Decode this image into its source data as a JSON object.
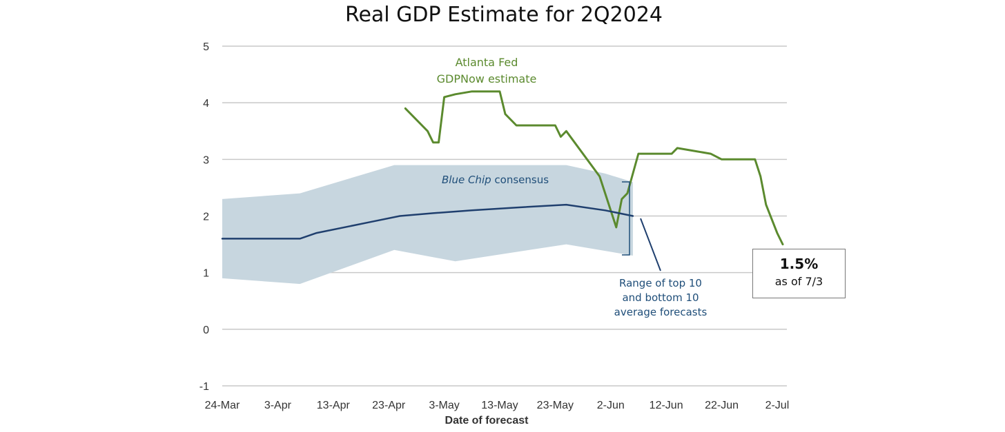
{
  "chart_data": {
    "type": "line",
    "title": "Real GDP Estimate for 2Q2024",
    "xlabel": "Date of forecast",
    "ylabel": "",
    "x_ticks": [
      "24-Mar",
      "3-Apr",
      "13-Apr",
      "23-Apr",
      "3-May",
      "13-May",
      "23-May",
      "2-Jun",
      "12-Jun",
      "22-Jun",
      "2-Jul"
    ],
    "y_ticks": [
      "5",
      "4",
      "3",
      "2",
      "1",
      "0",
      "-1"
    ],
    "ylim": [
      -1,
      5
    ],
    "grid": "horizontal",
    "series": [
      {
        "name": "Atlanta Fed GDPNow estimate",
        "color": "#5b8a2e",
        "points": [
          [
            "2024-04-26",
            3.9
          ],
          [
            "2024-04-30",
            3.5
          ],
          [
            "2024-05-01",
            3.3
          ],
          [
            "2024-05-02",
            3.3
          ],
          [
            "2024-05-03",
            4.1
          ],
          [
            "2024-05-05",
            4.15
          ],
          [
            "2024-05-08",
            4.2
          ],
          [
            "2024-05-13",
            4.2
          ],
          [
            "2024-05-14",
            3.8
          ],
          [
            "2024-05-16",
            3.6
          ],
          [
            "2024-05-23",
            3.6
          ],
          [
            "2024-05-24",
            3.4
          ],
          [
            "2024-05-25",
            3.5
          ],
          [
            "2024-05-31",
            2.7
          ],
          [
            "2024-06-03",
            1.8
          ],
          [
            "2024-06-04",
            2.3
          ],
          [
            "2024-06-05",
            2.4
          ],
          [
            "2024-06-07",
            3.1
          ],
          [
            "2024-06-13",
            3.1
          ],
          [
            "2024-06-14",
            3.2
          ],
          [
            "2024-06-17",
            3.15
          ],
          [
            "2024-06-20",
            3.1
          ],
          [
            "2024-06-22",
            3.0
          ],
          [
            "2024-06-28",
            3.0
          ],
          [
            "2024-06-29",
            2.7
          ],
          [
            "2024-06-30",
            2.2
          ],
          [
            "2024-07-02",
            1.7
          ],
          [
            "2024-07-03",
            1.5
          ]
        ]
      },
      {
        "name": "Blue Chip consensus",
        "color": "#1f3f6e",
        "points": [
          [
            "2024-03-24",
            1.6
          ],
          [
            "2024-04-07",
            1.6
          ],
          [
            "2024-04-10",
            1.7
          ],
          [
            "2024-04-20",
            1.9
          ],
          [
            "2024-04-25",
            2.0
          ],
          [
            "2024-05-01",
            2.05
          ],
          [
            "2024-05-08",
            2.1
          ],
          [
            "2024-05-16",
            2.15
          ],
          [
            "2024-05-25",
            2.2
          ],
          [
            "2024-06-01",
            2.1
          ],
          [
            "2024-06-06",
            2.0
          ]
        ]
      }
    ],
    "band": {
      "name": "Range of top 10 and bottom 10 average forecasts",
      "color": "#c7d6df",
      "upper": [
        [
          "2024-03-24",
          2.3
        ],
        [
          "2024-04-07",
          2.4
        ],
        [
          "2024-04-24",
          2.9
        ],
        [
          "2024-05-25",
          2.9
        ],
        [
          "2024-06-01",
          2.75
        ],
        [
          "2024-06-06",
          2.6
        ]
      ],
      "lower": [
        [
          "2024-03-24",
          0.9
        ],
        [
          "2024-04-07",
          0.8
        ],
        [
          "2024-04-24",
          1.4
        ],
        [
          "2024-05-05",
          1.2
        ],
        [
          "2024-05-25",
          1.5
        ],
        [
          "2024-06-06",
          1.3
        ]
      ]
    },
    "annotations": {
      "gdpnow_label": [
        "Atlanta Fed",
        "GDPNow estimate"
      ],
      "bluechip_label_italic": "Blue Chip",
      "bluechip_label_rest": " consensus",
      "range_label": [
        "Range of top 10",
        "and bottom 10",
        "average forecasts"
      ]
    }
  },
  "callout": {
    "value": "1.5%",
    "note": "as of 7/3"
  }
}
